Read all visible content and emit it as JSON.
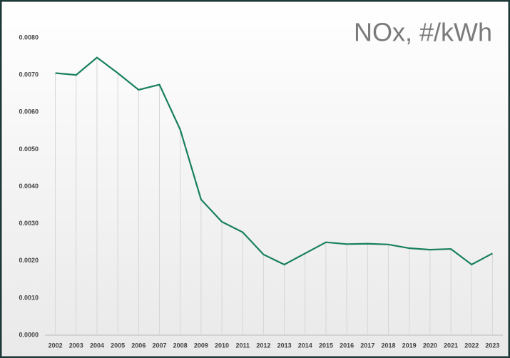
{
  "chart_data": {
    "type": "line",
    "title": "NOx, #/kWh",
    "categories": [
      "2002",
      "2003",
      "2004",
      "2005",
      "2006",
      "2007",
      "2008",
      "2009",
      "2010",
      "2011",
      "2012",
      "2013",
      "2014",
      "2015",
      "2016",
      "2017",
      "2018",
      "2019",
      "2020",
      "2021",
      "2022",
      "2023"
    ],
    "series": [
      {
        "color": "#17805a",
        "values": [
          0.00705,
          0.007,
          0.00747,
          0.00705,
          0.0066,
          0.00674,
          0.00553,
          0.00365,
          0.00305,
          0.00277,
          0.00217,
          0.0019,
          0.0022,
          0.0025,
          0.00245,
          0.00246,
          0.00244,
          0.00234,
          0.0023,
          0.00232,
          0.0019,
          0.0022
        ]
      }
    ],
    "ylim": [
      0,
      0.008
    ],
    "yticks": [
      {
        "value": 0,
        "label": "0.0000"
      },
      {
        "value": 0.001,
        "label": "0.0010"
      },
      {
        "value": 0.002,
        "label": "0.0020"
      },
      {
        "value": 0.003,
        "label": "0.0030"
      },
      {
        "value": 0.004,
        "label": "0.0040"
      },
      {
        "value": 0.005,
        "label": "0.0050"
      },
      {
        "value": 0.006,
        "label": "0.0060"
      },
      {
        "value": 0.007,
        "label": "0.0070"
      },
      {
        "value": 0.008,
        "label": "0.0080"
      }
    ],
    "drop_lines": true
  }
}
